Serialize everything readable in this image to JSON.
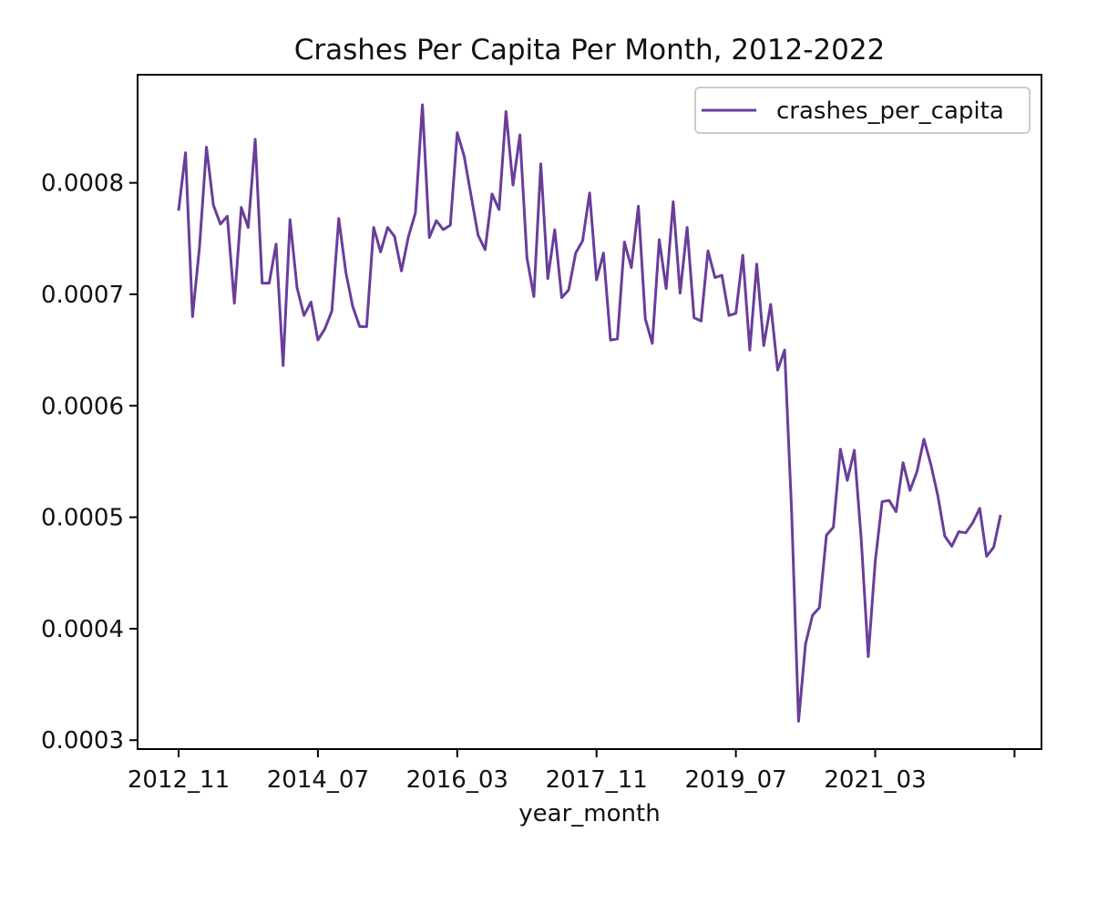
{
  "chart_data": {
    "type": "line",
    "title": "Crashes Per Capita Per Month, 2012-2022",
    "xlabel": "year_month",
    "ylabel": "",
    "x_tick_labels": [
      "2012_11",
      "2014_07",
      "2016_03",
      "2017_11",
      "2019_07",
      "2021_03",
      ""
    ],
    "y_ticks": [
      0.0003,
      0.0004,
      0.0005,
      0.0006,
      0.0007,
      0.0008
    ],
    "y_tick_labels": [
      "0.0003",
      "0.0004",
      "0.0005",
      "0.0006",
      "0.0007",
      "0.0008"
    ],
    "ylim": [
      0.000292,
      0.000897
    ],
    "grid": false,
    "legend": "top-right",
    "line_color": "#6a3d9a",
    "x": [
      "2012_11",
      "2012_12",
      "2013_01",
      "2013_02",
      "2013_03",
      "2013_04",
      "2013_05",
      "2013_06",
      "2013_07",
      "2013_08",
      "2013_09",
      "2013_10",
      "2013_11",
      "2013_12",
      "2014_01",
      "2014_02",
      "2014_03",
      "2014_04",
      "2014_05",
      "2014_06",
      "2014_07",
      "2014_08",
      "2014_09",
      "2014_10",
      "2014_11",
      "2014_12",
      "2015_01",
      "2015_02",
      "2015_03",
      "2015_04",
      "2015_05",
      "2015_06",
      "2015_07",
      "2015_08",
      "2015_09",
      "2015_10",
      "2015_11",
      "2015_12",
      "2016_01",
      "2016_02",
      "2016_03",
      "2016_04",
      "2016_05",
      "2016_06",
      "2016_07",
      "2016_08",
      "2016_09",
      "2016_10",
      "2016_11",
      "2016_12",
      "2017_01",
      "2017_02",
      "2017_03",
      "2017_04",
      "2017_05",
      "2017_06",
      "2017_07",
      "2017_08",
      "2017_09",
      "2017_10",
      "2017_11",
      "2017_12",
      "2018_01",
      "2018_02",
      "2018_03",
      "2018_04",
      "2018_05",
      "2018_06",
      "2018_07",
      "2018_08",
      "2018_09",
      "2018_10",
      "2018_11",
      "2018_12",
      "2019_01",
      "2019_02",
      "2019_03",
      "2019_04",
      "2019_05",
      "2019_06",
      "2019_07",
      "2019_08",
      "2019_09",
      "2019_10",
      "2019_11",
      "2019_12",
      "2020_01",
      "2020_02",
      "2020_03",
      "2020_04",
      "2020_05",
      "2020_06",
      "2020_07",
      "2020_08",
      "2020_09",
      "2020_10",
      "2020_11",
      "2020_12",
      "2021_01",
      "2021_02",
      "2021_03",
      "2021_04",
      "2021_05",
      "2021_06",
      "2021_07",
      "2021_08",
      "2021_09",
      "2021_10",
      "2021_11",
      "2021_12",
      "2022_01",
      "2022_02",
      "2022_03",
      "2022_04",
      "2022_05",
      "2022_06",
      "2022_07",
      "2022_08",
      "2022_09"
    ],
    "series": [
      {
        "name": "crashes_per_capita",
        "values": [
          0.000775,
          0.000827,
          0.00068,
          0.000742,
          0.000832,
          0.00078,
          0.000763,
          0.00077,
          0.000692,
          0.000778,
          0.00076,
          0.000839,
          0.00071,
          0.00071,
          0.000745,
          0.000636,
          0.000767,
          0.000706,
          0.000681,
          0.000693,
          0.000659,
          0.000669,
          0.000685,
          0.000768,
          0.00072,
          0.000689,
          0.000671,
          0.000671,
          0.00076,
          0.000738,
          0.00076,
          0.000752,
          0.000721,
          0.000752,
          0.000773,
          0.00087,
          0.000751,
          0.000766,
          0.000758,
          0.000762,
          0.000845,
          0.000824,
          0.000788,
          0.000753,
          0.00074,
          0.00079,
          0.000776,
          0.000864,
          0.000798,
          0.000843,
          0.000733,
          0.000698,
          0.000817,
          0.000714,
          0.000758,
          0.000697,
          0.000704,
          0.000737,
          0.000748,
          0.000791,
          0.000713,
          0.000737,
          0.000659,
          0.00066,
          0.000747,
          0.000724,
          0.000779,
          0.000678,
          0.000656,
          0.000749,
          0.000705,
          0.000783,
          0.000701,
          0.00076,
          0.000679,
          0.000676,
          0.000739,
          0.000715,
          0.000717,
          0.000681,
          0.000683,
          0.000735,
          0.00065,
          0.000727,
          0.000654,
          0.000691,
          0.000632,
          0.00065,
          0.000505,
          0.000317,
          0.000386,
          0.000412,
          0.000419,
          0.000484,
          0.000491,
          0.000561,
          0.000533,
          0.00056,
          0.00048,
          0.000375,
          0.00046,
          0.000514,
          0.000515,
          0.000505,
          0.000549,
          0.000524,
          0.000541,
          0.00057,
          0.000547,
          0.000519,
          0.000483,
          0.000474,
          0.000487,
          0.000486,
          0.000495,
          0.000508,
          0.000465,
          0.000473,
          0.000502
        ]
      }
    ]
  }
}
